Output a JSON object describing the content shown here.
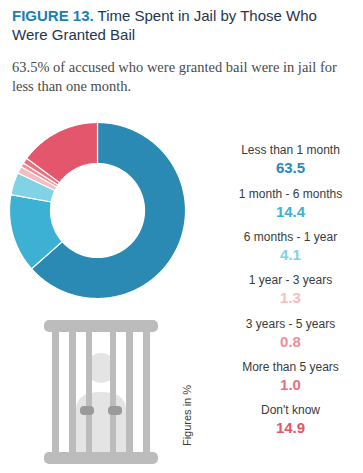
{
  "chart_data": {
    "type": "pie",
    "figure_number": "FIGURE 13.",
    "title": "Time Spent in Jail by Those Who Were Granted Bail",
    "subtitle": "63.5% of accused who were granted bail were in jail for less than one month.",
    "annotations": [
      "Figures in %"
    ],
    "categories": [
      "Less than 1 month",
      "1 month - 6 months",
      "6 months - 1 year",
      "1 year - 3 years",
      "3 years - 5 years",
      "More than 5 years",
      "Don't know"
    ],
    "values": [
      63.5,
      14.4,
      4.1,
      1.3,
      0.8,
      1.0,
      14.9
    ],
    "value_labels": [
      "63.5",
      "14.4",
      "4.1",
      "1.3",
      "0.8",
      "1.0",
      "14.9"
    ],
    "colors": [
      "#2a8ab4",
      "#3cb1d3",
      "#80d2e5",
      "#f6bcc0",
      "#ef9099",
      "#ea7080",
      "#e3566b"
    ],
    "data_labels": true
  }
}
